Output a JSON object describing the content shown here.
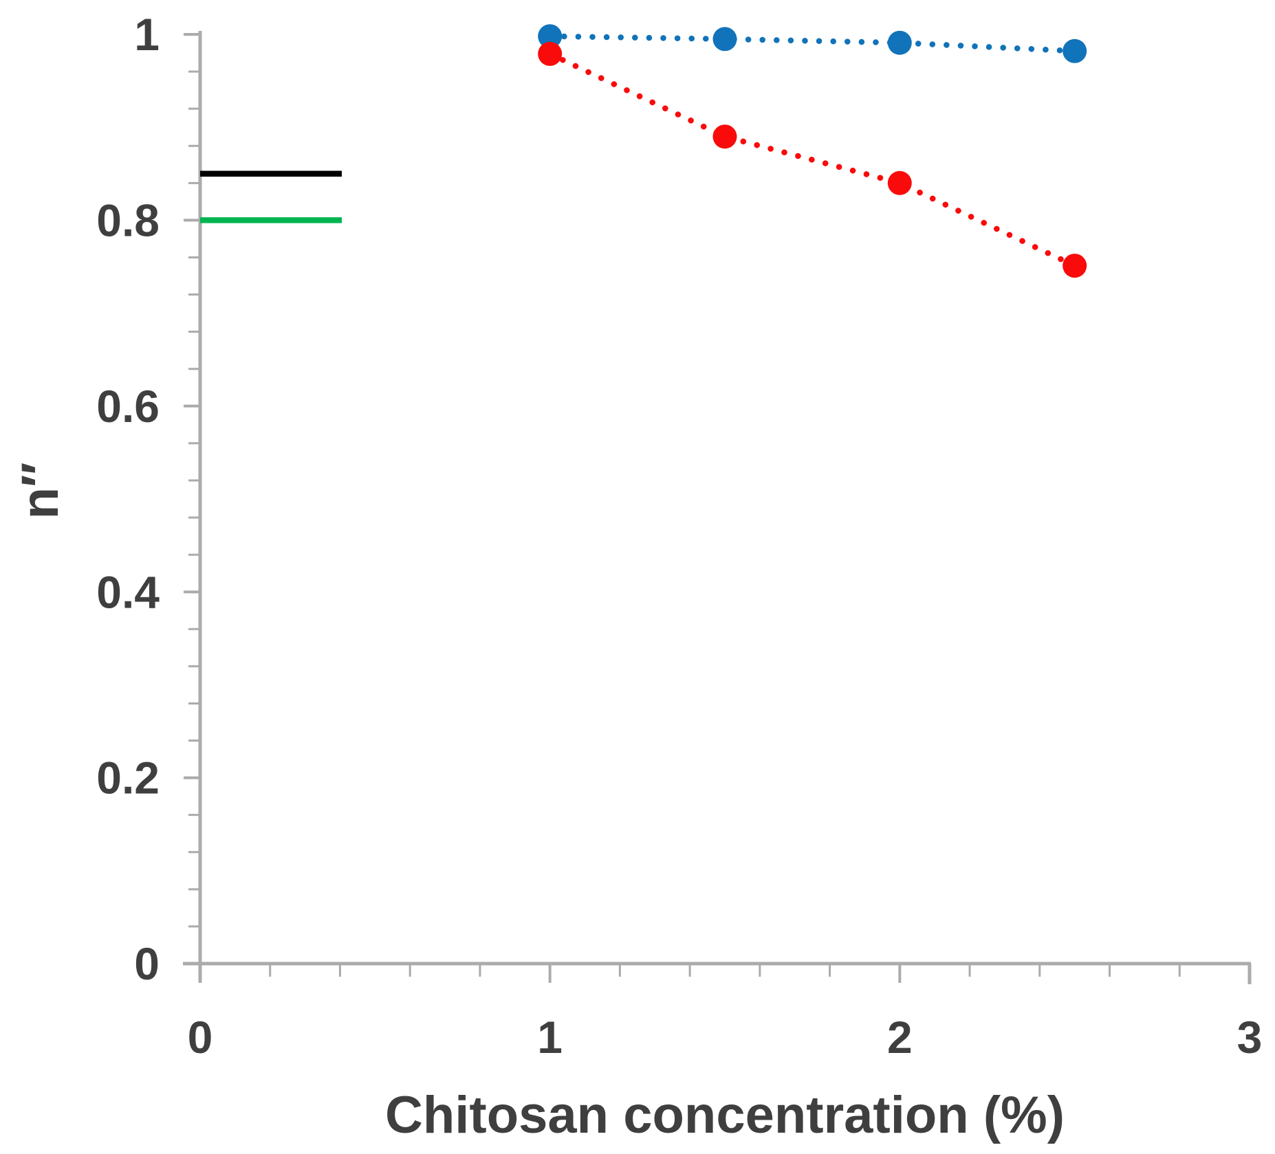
{
  "figure": {
    "background": "#ffffff"
  },
  "chart_data": {
    "type": "scatter",
    "title": "",
    "xlabel": "Chitosan concentration (%)",
    "ylabel": "n″",
    "xlim": [
      0,
      3
    ],
    "ylim": [
      0,
      1
    ],
    "grid": false,
    "legend": "none",
    "axis_color": "#ABABAB",
    "label_color": "#3F3F3F",
    "x_major_ticks": [
      0,
      1,
      2,
      3
    ],
    "x_tick_labels": [
      "0",
      "1",
      "2",
      "3"
    ],
    "x_minor_step": 0.2,
    "y_major_ticks": [
      0,
      0.2,
      0.4,
      0.6,
      0.8,
      1
    ],
    "y_tick_labels": [
      "0",
      "0.2",
      "0.4",
      "0.6",
      "0.8",
      "1"
    ],
    "y_minor_step": 0.04,
    "x": [
      1,
      1.5,
      2,
      2.5
    ],
    "series": [
      {
        "name": "blue-series",
        "color": "#1173B9",
        "marker": "circle",
        "line_style": "dotted",
        "values": [
          0.998,
          0.995,
          0.991,
          0.982
        ]
      },
      {
        "name": "red-series",
        "color": "#F90B0B",
        "marker": "circle",
        "line_style": "dotted",
        "values": [
          0.979,
          0.89,
          0.84,
          0.751
        ]
      }
    ],
    "reference_lines": [
      {
        "name": "black-reference-line",
        "color": "#000000",
        "y": 0.85,
        "x_start": 0,
        "x_end": 0.405
      },
      {
        "name": "green-reference-line",
        "color": "#00B450",
        "y": 0.8,
        "x_start": 0,
        "x_end": 0.405
      }
    ]
  }
}
